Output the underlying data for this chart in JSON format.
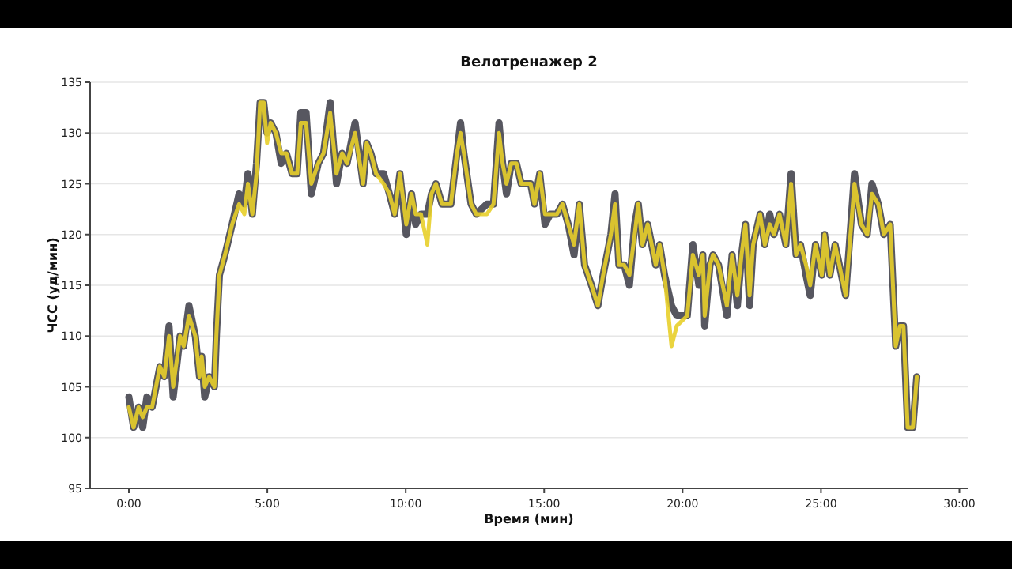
{
  "chart_data": {
    "type": "line",
    "title": "Велотренажер 2",
    "xlabel": "Время (мин)",
    "ylabel": "ЧСС (уд/мин)",
    "x": [
      0,
      0.17,
      0.35,
      0.5,
      0.65,
      0.84,
      1.12,
      1.28,
      1.45,
      1.6,
      1.85,
      1.98,
      2.17,
      2.4,
      2.55,
      2.63,
      2.74,
      2.9,
      3.09,
      3.16,
      3.27,
      3.47,
      3.73,
      3.98,
      4.17,
      4.3,
      4.46,
      4.61,
      4.74,
      4.87,
      4.99,
      5.12,
      5.31,
      5.5,
      5.69,
      5.89,
      6.08,
      6.21,
      6.4,
      6.59,
      6.84,
      7.03,
      7.27,
      7.5,
      7.7,
      7.88,
      8.17,
      8.46,
      8.59,
      8.74,
      8.93,
      9.2,
      9.41,
      9.6,
      9.79,
      10.02,
      10.21,
      10.36,
      10.55,
      10.78,
      10.93,
      11.09,
      11.31,
      11.63,
      11.85,
      11.98,
      12.1,
      12.36,
      12.55,
      12.93,
      13.17,
      13.37,
      13.5,
      13.64,
      13.81,
      14,
      14.17,
      14.51,
      14.65,
      14.84,
      15.03,
      15.22,
      15.46,
      15.66,
      15.87,
      16.08,
      16.27,
      16.46,
      16.71,
      16.94,
      17.13,
      17.41,
      17.56,
      17.7,
      17.89,
      18.08,
      18.27,
      18.4,
      18.55,
      18.74,
      19.03,
      19.17,
      19.35,
      19.6,
      19.79,
      20.17,
      20.37,
      20.59,
      20.73,
      20.8,
      20.99,
      21.1,
      21.3,
      21.6,
      21.79,
      21.98,
      22.13,
      22.27,
      22.42,
      22.55,
      22.8,
      22.97,
      23.15,
      23.3,
      23.5,
      23.73,
      23.92,
      24.1,
      24.26,
      24.46,
      24.61,
      24.8,
      25.03,
      25.13,
      25.32,
      25.51,
      25.89,
      26.21,
      26.46,
      26.67,
      26.84,
      27.07,
      27.27,
      27.5,
      27.7,
      27.85,
      27.98,
      28.13,
      28.32,
      28.46
    ],
    "series": [
      {
        "color": "#45454f",
        "values": [
          104,
          101,
          103,
          101,
          104,
          103,
          107,
          106,
          111,
          104,
          110,
          109,
          113,
          110,
          106,
          108,
          104,
          106,
          105,
          110,
          116,
          118,
          121,
          124,
          123,
          126,
          122,
          127,
          133,
          133,
          130,
          131,
          130,
          127,
          128,
          126,
          126,
          132,
          132,
          124,
          127,
          128,
          133,
          125,
          128,
          127,
          131,
          125,
          129,
          128,
          126,
          126,
          124,
          122,
          126,
          120,
          124,
          121,
          122,
          122,
          124,
          125,
          123,
          123,
          128,
          131,
          128,
          123,
          122,
          123,
          123,
          131,
          127,
          124,
          127,
          127,
          125,
          125,
          123,
          126,
          121,
          122,
          122,
          123,
          121,
          118,
          123,
          117,
          115,
          113,
          116,
          120,
          124,
          117,
          117,
          115,
          121,
          123,
          119,
          121,
          117,
          119,
          116,
          113,
          112,
          112,
          119,
          115,
          118,
          111,
          117,
          118,
          117,
          112,
          118,
          113,
          118,
          121,
          113,
          119,
          122,
          119,
          122,
          120,
          122,
          119,
          126,
          118,
          119,
          116,
          114,
          119,
          116,
          120,
          116,
          119,
          114,
          126,
          121,
          120,
          125,
          123,
          120,
          121,
          109,
          111,
          111,
          101,
          101,
          106
        ]
      },
      {
        "color": "#e8cf2a",
        "values": [
          103,
          101,
          103,
          102,
          103,
          103,
          107,
          106,
          110,
          105,
          110,
          109,
          112,
          110,
          106,
          108,
          105,
          106,
          105,
          110,
          116,
          118,
          121,
          123,
          122,
          125,
          122,
          126,
          133,
          133,
          129,
          131,
          130,
          128,
          128,
          126,
          126,
          131,
          131,
          125,
          127,
          128,
          132,
          126,
          128,
          127,
          130,
          125,
          129,
          128,
          126,
          125,
          124,
          122,
          126,
          121,
          124,
          122,
          122,
          119,
          124,
          125,
          123,
          123,
          128,
          130,
          128,
          123,
          122,
          122,
          123,
          130,
          127,
          125,
          127,
          127,
          125,
          125,
          123,
          126,
          122,
          122,
          122,
          123,
          121,
          119,
          123,
          117,
          115,
          113,
          116,
          120,
          123,
          117,
          117,
          116,
          120,
          123,
          119,
          121,
          117,
          119,
          116,
          109,
          111,
          112,
          118,
          116,
          118,
          112,
          117,
          118,
          117,
          113,
          118,
          114,
          118,
          121,
          114,
          119,
          122,
          119,
          121,
          120,
          122,
          119,
          125,
          118,
          119,
          117,
          115,
          119,
          116,
          120,
          116,
          119,
          114,
          125,
          121,
          120,
          124,
          123,
          120,
          121,
          109,
          111,
          111,
          101,
          101,
          106
        ]
      }
    ],
    "xlim": [
      -1.4,
      30.3
    ],
    "ylim": [
      95,
      135
    ],
    "xticks": [
      {
        "value": 0,
        "label": "0:00"
      },
      {
        "value": 5,
        "label": "5:00"
      },
      {
        "value": 10,
        "label": "10:00"
      },
      {
        "value": 15,
        "label": "15:00"
      },
      {
        "value": 20,
        "label": "20:00"
      },
      {
        "value": 25,
        "label": "25:00"
      },
      {
        "value": 30,
        "label": "30:00"
      }
    ],
    "yticks": [
      95,
      100,
      105,
      110,
      115,
      120,
      125,
      130,
      135
    ],
    "grid": "y",
    "line_style": "solid"
  }
}
